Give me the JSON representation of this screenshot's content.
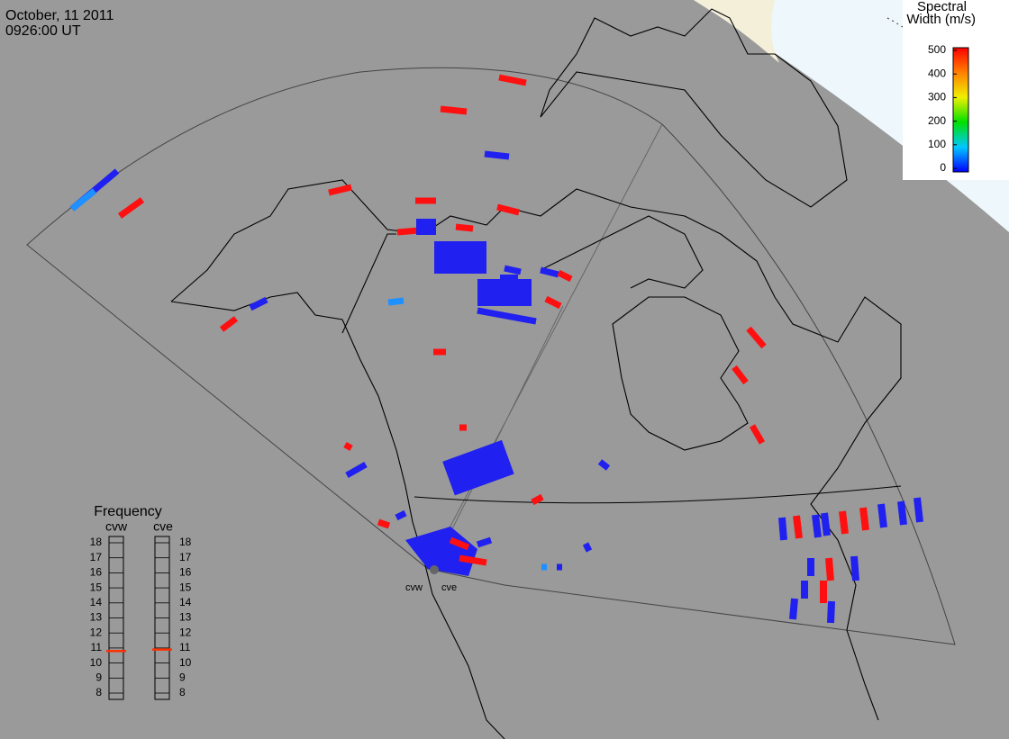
{
  "header": {
    "date": "October, 11 2011",
    "time": "0926:00 UT"
  },
  "colorbar": {
    "title": [
      "Spectral",
      "Width (m/s)"
    ],
    "lim": [
      0,
      500
    ],
    "ticks": [
      0,
      100,
      200,
      300,
      400,
      500
    ]
  },
  "frequency": {
    "title": "Frequency",
    "lim": [
      8,
      18
    ],
    "ticks": [
      8,
      9,
      10,
      11,
      12,
      13,
      14,
      15,
      16,
      17,
      18
    ],
    "radars": [
      {
        "name": "cvw",
        "value": 10.8
      },
      {
        "name": "cve",
        "value": 10.9
      }
    ]
  }
}
